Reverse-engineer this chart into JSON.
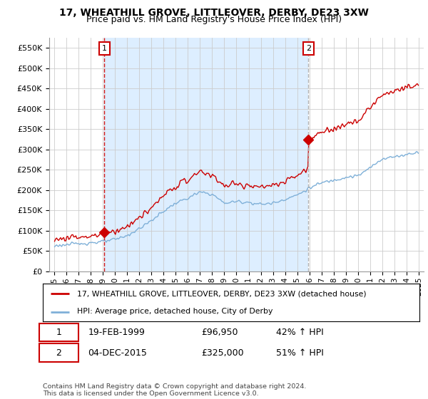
{
  "title": "17, WHEATHILL GROVE, LITTLEOVER, DERBY, DE23 3XW",
  "subtitle": "Price paid vs. HM Land Registry's House Price Index (HPI)",
  "ylim": [
    0,
    575000
  ],
  "yticks": [
    0,
    50000,
    100000,
    150000,
    200000,
    250000,
    300000,
    350000,
    400000,
    450000,
    500000,
    550000
  ],
  "ytick_labels": [
    "£0",
    "£50K",
    "£100K",
    "£150K",
    "£200K",
    "£250K",
    "£300K",
    "£350K",
    "£400K",
    "£450K",
    "£500K",
    "£550K"
  ],
  "sale1_date": 1999.13,
  "sale1_price": 96950,
  "sale2_date": 2015.92,
  "sale2_price": 325000,
  "line_color_red": "#cc0000",
  "line_color_blue": "#7fb0d8",
  "vline1_color": "#cc0000",
  "vline2_color": "#aaaaaa",
  "shade_color": "#ddeeff",
  "grid_color": "#cccccc",
  "background_color": "#ffffff",
  "legend_line1": "17, WHEATHILL GROVE, LITTLEOVER, DERBY, DE23 3XW (detached house)",
  "legend_line2": "HPI: Average price, detached house, City of Derby",
  "table_row1_date": "19-FEB-1999",
  "table_row1_price": "£96,950",
  "table_row1_hpi": "42% ↑ HPI",
  "table_row2_date": "04-DEC-2015",
  "table_row2_price": "£325,000",
  "table_row2_hpi": "51% ↑ HPI",
  "footnote": "Contains HM Land Registry data © Crown copyright and database right 2024.\nThis data is licensed under the Open Government Licence v3.0.",
  "title_fontsize": 10,
  "subtitle_fontsize": 9
}
